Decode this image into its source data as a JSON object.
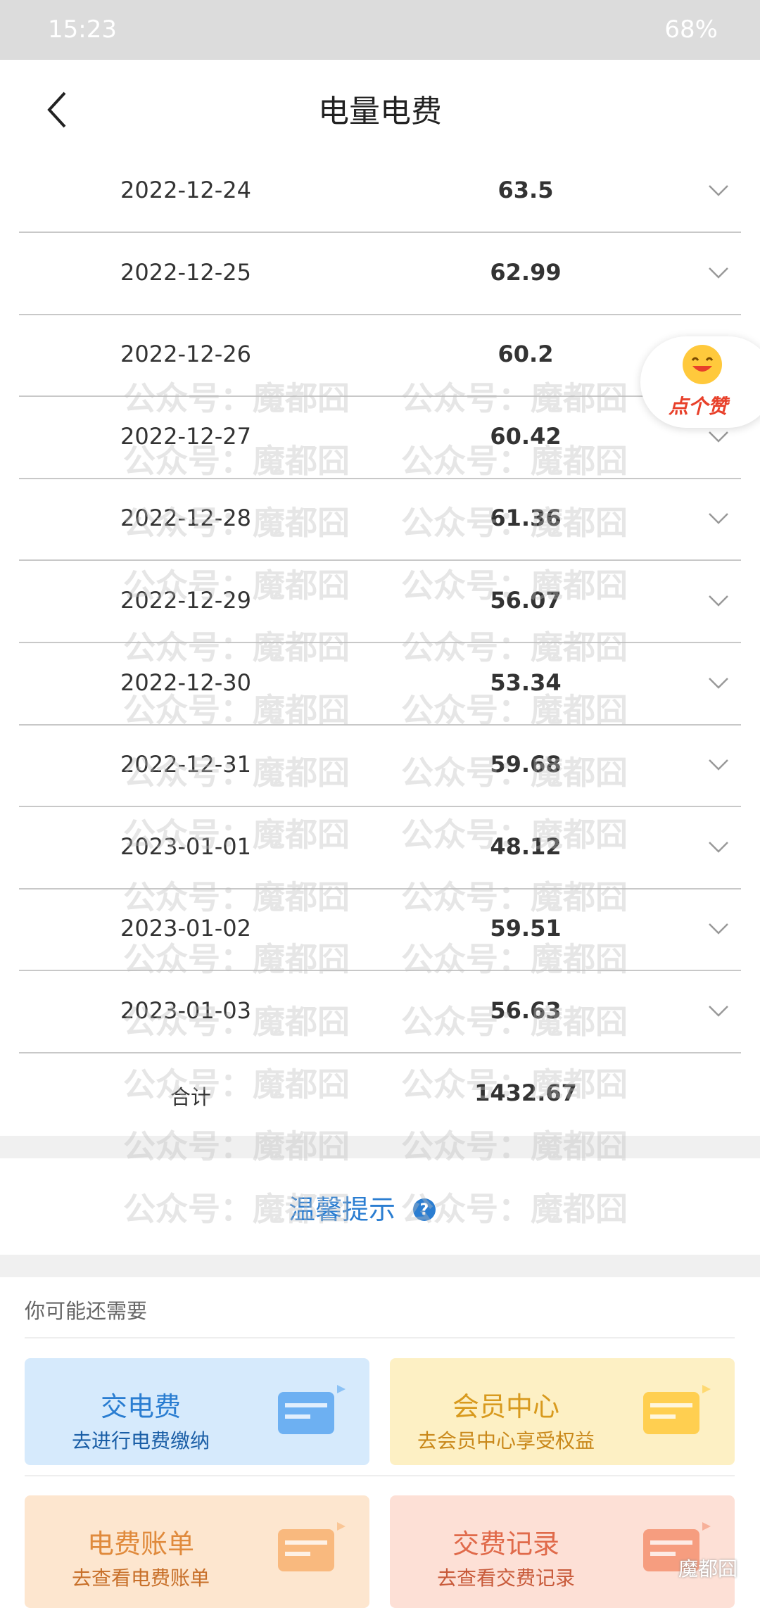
{
  "status_bar": {
    "time": "15:23",
    "battery": "68%"
  },
  "header": {
    "title": "电量电费"
  },
  "rows": [
    {
      "date": "2022-12-24",
      "value": "63.5"
    },
    {
      "date": "2022-12-25",
      "value": "62.99"
    },
    {
      "date": "2022-12-26",
      "value": "60.2"
    },
    {
      "date": "2022-12-27",
      "value": "60.42"
    },
    {
      "date": "2022-12-28",
      "value": "61.36"
    },
    {
      "date": "2022-12-29",
      "value": "56.07"
    },
    {
      "date": "2022-12-30",
      "value": "53.34"
    },
    {
      "date": "2022-12-31",
      "value": "59.68"
    },
    {
      "date": "2023-01-01",
      "value": "48.12"
    },
    {
      "date": "2023-01-02",
      "value": "59.51"
    },
    {
      "date": "2023-01-03",
      "value": "56.63"
    }
  ],
  "total": {
    "label": "合计",
    "value": "1432.67"
  },
  "tip": "温馨提示",
  "recommend": {
    "title": "你可能还需要",
    "cards": [
      {
        "title": "交电费",
        "subtitle": "去进行电费缴纳"
      },
      {
        "title": "会员中心",
        "subtitle": "去会员中心享受权益"
      },
      {
        "title": "电费账单",
        "subtitle": "去查看电费账单"
      },
      {
        "title": "交费记录",
        "subtitle": "去查看交费记录"
      }
    ]
  },
  "badge": "点个赞",
  "watermark": "公众号：魔都囧",
  "footer_mark": "魔都囧"
}
